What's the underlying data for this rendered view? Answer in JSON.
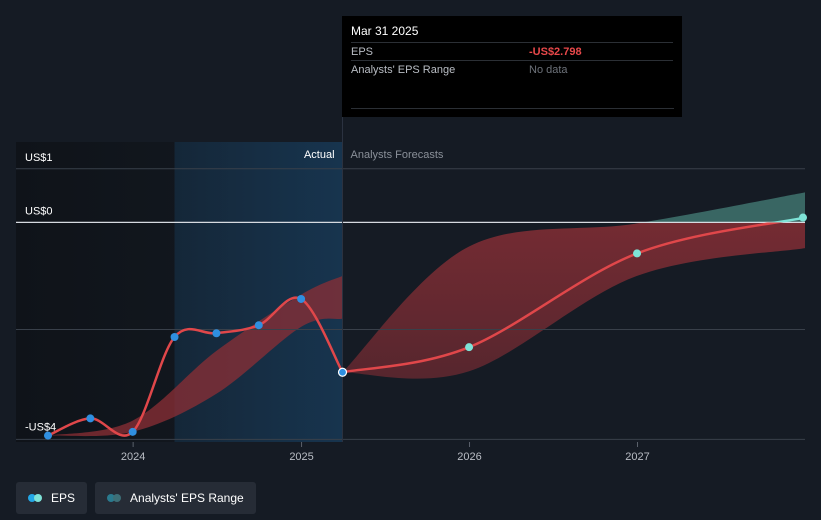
{
  "tooltip": {
    "date": "Mar 31 2025",
    "rows": [
      {
        "label": "EPS",
        "value": "-US$2.798"
      },
      {
        "label": "Analysts' EPS Range",
        "value": "No data"
      }
    ]
  },
  "legend": [
    {
      "label": "EPS",
      "dot1": "#23a7e6",
      "dot2": "#7ee3d7"
    },
    {
      "label": "Analysts' EPS Range",
      "dot1": "#2a7a8e",
      "dot2": "#3d6f77"
    }
  ],
  "chart_data": {
    "type": "line",
    "y_tick_labels": [
      {
        "label": "US$1",
        "value": 1
      },
      {
        "label": "US$0",
        "value": 0
      },
      {
        "label": "-US$4",
        "value": -4
      }
    ],
    "ylim": [
      -4.1,
      1.5
    ],
    "x_tick_labels": [
      "2024",
      "2025",
      "2026",
      "2027"
    ],
    "xlim": [
      "2023-06-30",
      "2027-12-31"
    ],
    "divider_labels": {
      "actual": "Actual",
      "forecast": "Analysts Forecasts"
    },
    "divider_date": "2025-03-31",
    "highlight_range": [
      "2024-03-31",
      "2025-03-31"
    ],
    "eps_actual": [
      {
        "date": "2023-06-30",
        "eps": -3.98
      },
      {
        "date": "2023-09-30",
        "eps": -3.66
      },
      {
        "date": "2023-12-31",
        "eps": -3.91
      },
      {
        "date": "2024-03-31",
        "eps": -2.14
      },
      {
        "date": "2024-06-30",
        "eps": -2.07
      },
      {
        "date": "2024-09-30",
        "eps": -1.92
      },
      {
        "date": "2024-12-31",
        "eps": -1.43
      },
      {
        "date": "2025-03-31",
        "eps": -2.798
      }
    ],
    "eps_forecast": [
      {
        "date": "2025-03-31",
        "eps": -2.798
      },
      {
        "date": "2025-12-31",
        "eps": -2.33
      },
      {
        "date": "2026-12-31",
        "eps": -0.58
      },
      {
        "date": "2027-12-31",
        "eps": 0.09
      }
    ],
    "historic_range": [
      {
        "date": "2023-06-30",
        "low": -3.98,
        "high": -3.98
      },
      {
        "date": "2023-12-31",
        "low": -3.91,
        "high": -3.7
      },
      {
        "date": "2024-06-30",
        "low": -3.2,
        "high": -2.4
      },
      {
        "date": "2024-12-31",
        "low": -1.95,
        "high": -1.35
      },
      {
        "date": "2025-03-31",
        "low": -1.8,
        "high": -1.0
      }
    ],
    "forecast_range": [
      {
        "date": "2025-03-31",
        "low": -2.798,
        "high": -2.798
      },
      {
        "date": "2025-12-31",
        "low": -2.78,
        "high": -0.45
      },
      {
        "date": "2026-12-31",
        "low": -1.0,
        "high": -0.02
      },
      {
        "date": "2027-12-31",
        "low": -0.48,
        "high": 0.56
      }
    ],
    "colors": {
      "eps_line": "#e0474a",
      "actual_point": "#2f8fe0",
      "forecast_point": "#7ee3d7",
      "range_negative": "#8c2f36",
      "range_positive": "#3d6f6a",
      "highlight": "#17344e"
    }
  }
}
